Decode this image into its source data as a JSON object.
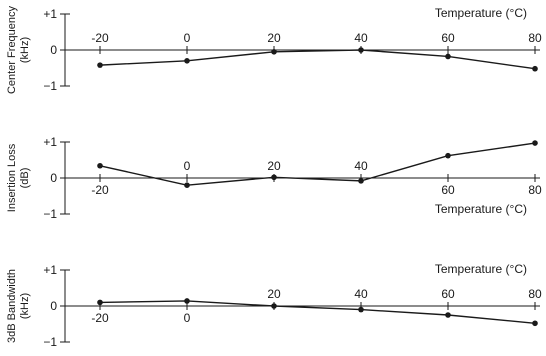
{
  "chart_data": [
    {
      "type": "line",
      "ylabel": [
        "Center Frequency",
        "(kHz)"
      ],
      "xlabel": "Temperature (°C)",
      "x": [
        -20,
        0,
        20,
        40,
        60,
        80
      ],
      "series": [
        {
          "values": [
            -0.42,
            -0.3,
            -0.05,
            0.0,
            -0.18,
            -0.52
          ]
        }
      ],
      "y_ticks": [
        1,
        0,
        -1
      ],
      "y_tick_labels": [
        "+1",
        "0",
        "−1"
      ],
      "x_tick_labels": [
        "-20",
        "0",
        "20",
        "40",
        "60",
        "80"
      ],
      "ylim": [
        -1,
        1
      ],
      "xlim": [
        -20,
        80
      ],
      "color": "#1a1a1a"
    },
    {
      "type": "line",
      "ylabel": [
        "Insertion Loss",
        "(dB)"
      ],
      "xlabel": "Temperature (°C)",
      "x": [
        -20,
        0,
        20,
        40,
        60,
        80
      ],
      "series": [
        {
          "values": [
            0.34,
            -0.2,
            0.02,
            -0.08,
            0.62,
            0.97
          ]
        }
      ],
      "y_ticks": [
        1,
        0,
        -1
      ],
      "y_tick_labels": [
        "+1",
        "0",
        "−1"
      ],
      "x_tick_labels": [
        "-20",
        "0",
        "20",
        "40",
        "60",
        "80"
      ],
      "ylim": [
        -1,
        1
      ],
      "xlim": [
        -20,
        80
      ],
      "color": "#1a1a1a"
    },
    {
      "type": "line",
      "ylabel": [
        "3dB Bandwidth",
        "(kHz)"
      ],
      "xlabel": "Temperature (°C)",
      "x": [
        -20,
        0,
        20,
        40,
        60,
        80
      ],
      "series": [
        {
          "values": [
            0.1,
            0.14,
            0.0,
            -0.1,
            -0.25,
            -0.48
          ]
        }
      ],
      "y_ticks": [
        1,
        0,
        -1
      ],
      "y_tick_labels": [
        "+1",
        "0",
        "−1"
      ],
      "x_tick_labels": [
        "-20",
        "0",
        "20",
        "40",
        "60",
        "80"
      ],
      "ylim": [
        -1,
        1
      ],
      "xlim": [
        -20,
        80
      ],
      "color": "#1a1a1a"
    }
  ]
}
